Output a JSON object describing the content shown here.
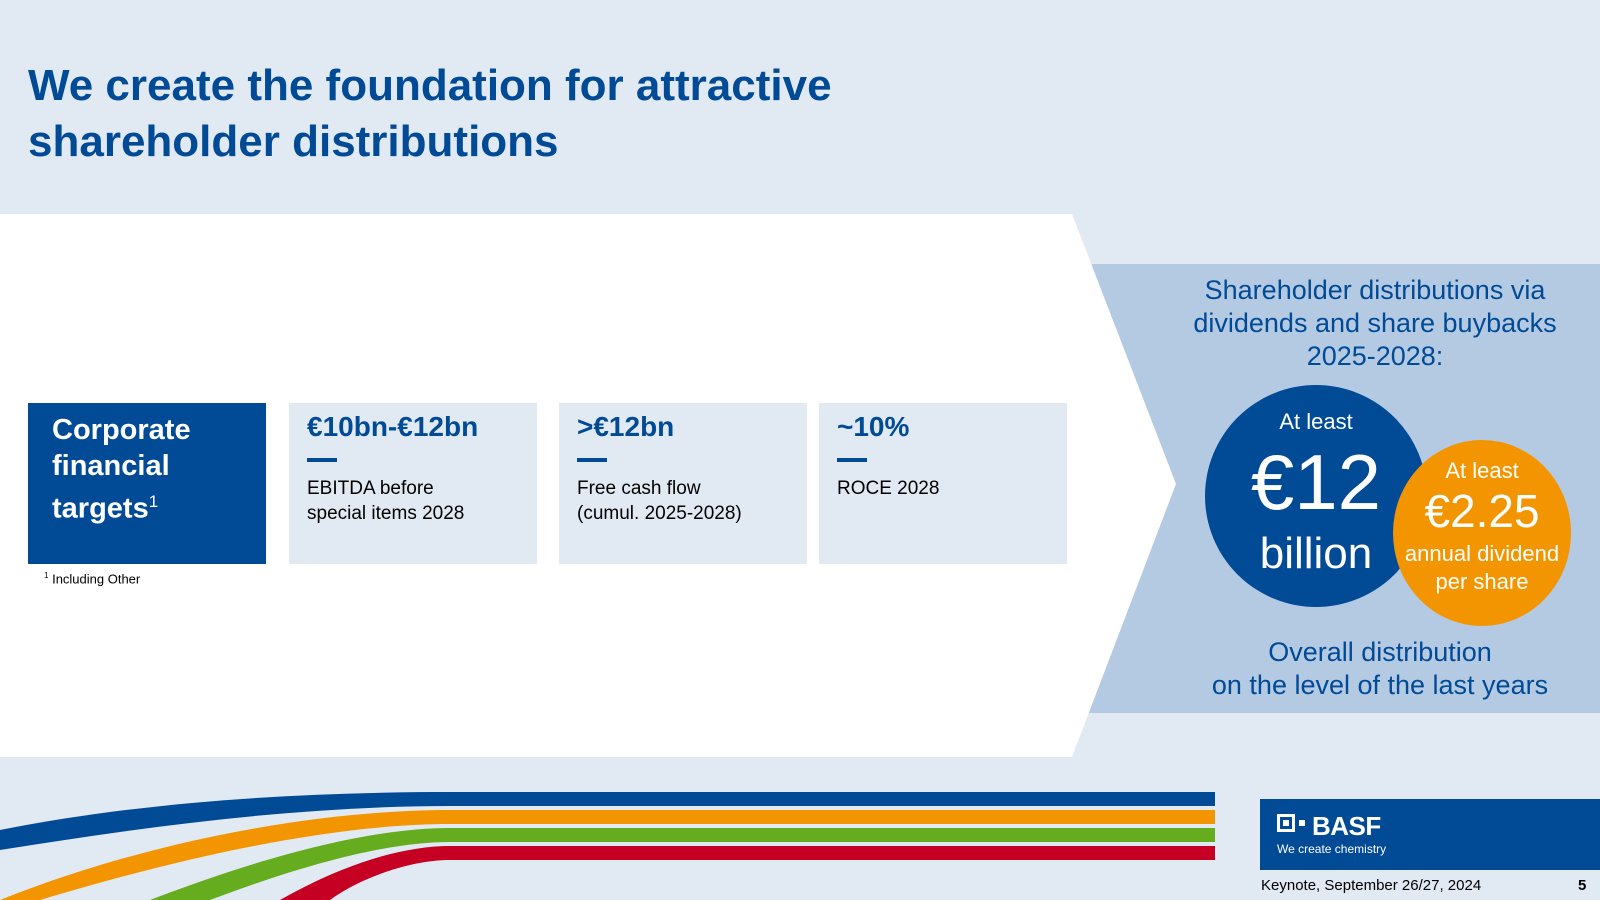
{
  "slide": {
    "title_lines": [
      "We create the foundation for attractive",
      "shareholder distributions"
    ]
  },
  "targets": {
    "header_lines": [
      "Corporate",
      "financial",
      "targets"
    ],
    "header_footnote_mark": "1",
    "cards": [
      {
        "value": "€10bn-€12bn",
        "label_lines": [
          "EBITDA before",
          "special items 2028"
        ]
      },
      {
        "value": ">€12bn",
        "label_lines": [
          "Free cash flow",
          "(cumul. 2025-2028)"
        ]
      },
      {
        "value": "~10%",
        "label_lines": [
          "ROCE 2028"
        ]
      }
    ],
    "footnote_mark": "1",
    "footnote_text": "Including Other"
  },
  "distributions": {
    "title_lines": [
      "Shareholder distributions via",
      "dividends and share buybacks",
      "2025-2028:"
    ],
    "total": {
      "prefix": "At least",
      "amount": "€12",
      "unit": "billion"
    },
    "dividend": {
      "prefix": "At least",
      "amount": "€2.25",
      "desc_lines": [
        "annual dividend",
        "per share"
      ]
    },
    "bottom_lines": [
      "Overall distribution",
      "on the level of the last years"
    ]
  },
  "colors": {
    "brand_blue": "#004a96",
    "light_blue": "#b4c9e2",
    "background": "#e1e9f3",
    "orange": "#f39500",
    "green": "#65ac1e",
    "red": "#c50022"
  },
  "footer": {
    "logo_text": "BASF",
    "logo_tagline": "We create chemistry",
    "event": "Keynote, September 26/27, 2024",
    "page_number": "5"
  }
}
